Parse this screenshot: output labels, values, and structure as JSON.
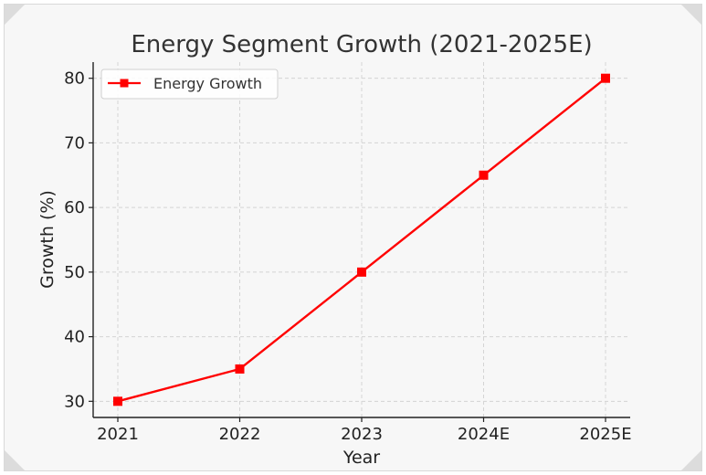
{
  "chart_data": {
    "type": "line",
    "title": "Energy Segment Growth (2021-2025E)",
    "xlabel": "Year",
    "ylabel": "Growth (%)",
    "categories": [
      "2021",
      "2022",
      "2023",
      "2024E",
      "2025E"
    ],
    "series": [
      {
        "name": "Energy Growth",
        "values": [
          30,
          35,
          50,
          65,
          80
        ],
        "color": "#ff0000",
        "marker": "square"
      }
    ],
    "ylim": [
      27.5,
      82.5
    ],
    "yticks": [
      30,
      40,
      50,
      60,
      70,
      80
    ],
    "grid": true,
    "legend": "top-left"
  }
}
